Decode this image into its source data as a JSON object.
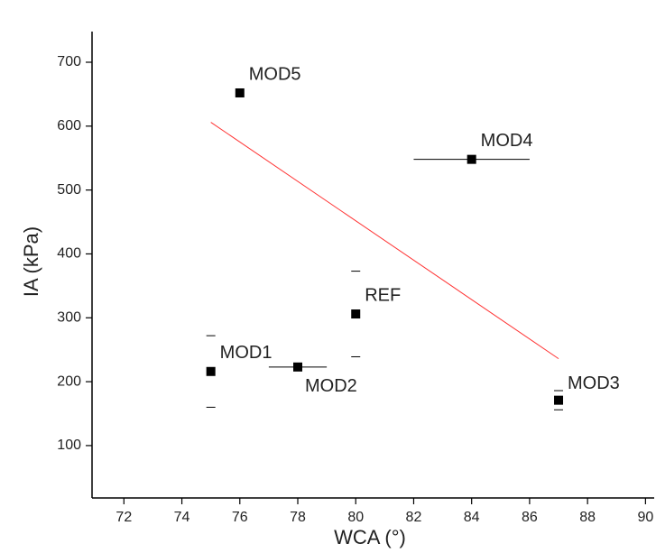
{
  "chart_data": {
    "type": "scatter",
    "x_label": "WCA (°)",
    "y_label": "IA (kPa)",
    "xlim": [
      70.9,
      90.3
    ],
    "xticks": [
      72,
      74,
      76,
      78,
      80,
      82,
      84,
      86,
      88,
      90
    ],
    "ylim": [
      18,
      748
    ],
    "yticks": [
      100,
      200,
      300,
      400,
      500,
      600,
      700
    ],
    "points": {
      "color": "#000000",
      "labels": [
        "MOD5",
        "MOD4",
        "REF",
        "MOD1",
        "MOD2",
        "MOD3"
      ],
      "x": [
        76,
        84,
        80,
        75,
        78,
        87
      ],
      "y": [
        652,
        548,
        306,
        216,
        223,
        171
      ],
      "xerr": [
        null,
        2,
        null,
        null,
        1,
        null
      ],
      "yerr": [
        null,
        null,
        67,
        56,
        null,
        15
      ]
    },
    "fit": {
      "color": "#ff3333",
      "x": [
        75,
        87
      ],
      "y": [
        606,
        236
      ]
    }
  }
}
